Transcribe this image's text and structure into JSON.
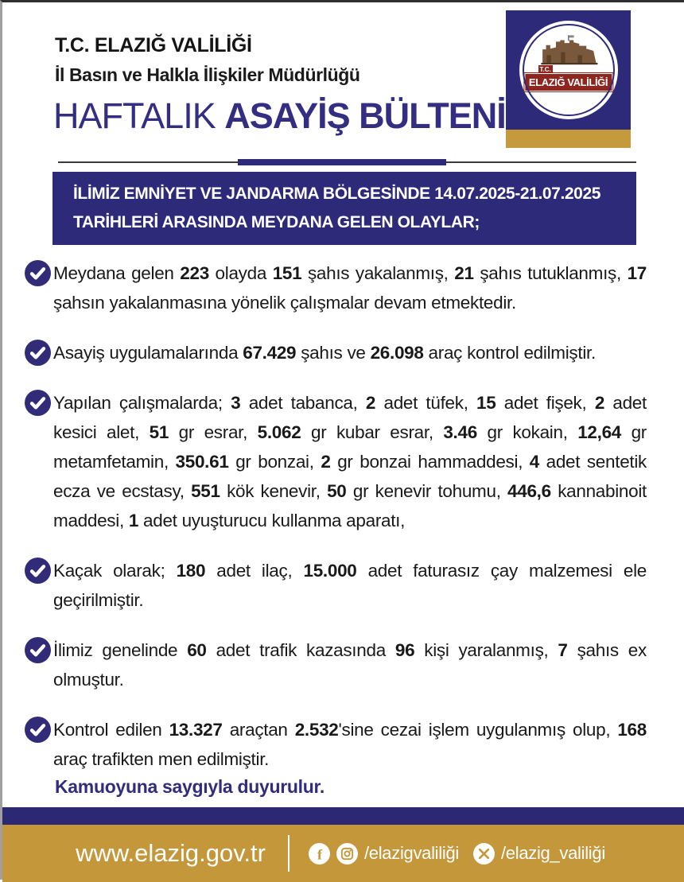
{
  "header": {
    "org_title": "T.C. ELAZIĞ VALİLİĞİ",
    "org_subtitle": "İl Basın ve Halkla İlişkiler Müdürlüğü",
    "title_light": "HAFTALIK",
    "title_bold": "ASAYİŞ BÜLTENİ"
  },
  "logo": {
    "tc": "T.C.",
    "label": "ELAZIĞ VALİLİĞİ"
  },
  "banner": {
    "text": "İLİMİZ EMNİYET VE JANDARMA BÖLGESİNDE 14.07.2025-21.07.2025 TARİHLERİ ARASINDA MEYDANA GELEN OLAYLAR;"
  },
  "bullets": [
    {
      "segments": [
        {
          "text": "Meydana gelen "
        },
        {
          "text": "223",
          "bold": true
        },
        {
          "text": " olayda "
        },
        {
          "text": "151",
          "bold": true
        },
        {
          "text": " şahıs yakalanmış, "
        },
        {
          "text": "21",
          "bold": true
        },
        {
          "text": " şahıs tutuklanmış, "
        },
        {
          "text": "17",
          "bold": true
        },
        {
          "text": " şahsın yakalanmasına yönelik çalışmalar devam etmektedir."
        }
      ]
    },
    {
      "segments": [
        {
          "text": "Asayiş uygulamalarında "
        },
        {
          "text": "67.429",
          "bold": true
        },
        {
          "text": " şahıs ve "
        },
        {
          "text": "26.098",
          "bold": true
        },
        {
          "text": " araç kontrol edilmiştir."
        }
      ]
    },
    {
      "segments": [
        {
          "text": "Yapılan çalışmalarda; "
        },
        {
          "text": "3",
          "bold": true
        },
        {
          "text": " adet tabanca, "
        },
        {
          "text": "2",
          "bold": true
        },
        {
          "text": " adet tüfek, "
        },
        {
          "text": "15",
          "bold": true
        },
        {
          "text": " adet fişek, "
        },
        {
          "text": "2",
          "bold": true
        },
        {
          "text": " adet kesici alet, "
        },
        {
          "text": "51",
          "bold": true
        },
        {
          "text": " gr esrar, "
        },
        {
          "text": "5.062",
          "bold": true
        },
        {
          "text": " gr kubar esrar, "
        },
        {
          "text": "3.46",
          "bold": true
        },
        {
          "text": " gr kokain, "
        },
        {
          "text": "12,64",
          "bold": true
        },
        {
          "text": " gr metamfetamin, "
        },
        {
          "text": "350.61",
          "bold": true
        },
        {
          "text": " gr bonzai, "
        },
        {
          "text": "2",
          "bold": true
        },
        {
          "text": " gr bonzai hammaddesi, "
        },
        {
          "text": "4",
          "bold": true
        },
        {
          "text": " adet sentetik ecza ve ecstasy, "
        },
        {
          "text": "551",
          "bold": true
        },
        {
          "text": " kök kenevir, "
        },
        {
          "text": "50",
          "bold": true
        },
        {
          "text": " gr kenevir tohumu, "
        },
        {
          "text": "446,6",
          "bold": true
        },
        {
          "text": " kannabinoit maddesi, "
        },
        {
          "text": "1",
          "bold": true
        },
        {
          "text": " adet uyuşturucu kullanma aparatı,"
        }
      ]
    },
    {
      "segments": [
        {
          "text": "Kaçak olarak; "
        },
        {
          "text": "180",
          "bold": true
        },
        {
          "text": " adet ilaç, "
        },
        {
          "text": "15.000",
          "bold": true
        },
        {
          "text": " adet faturasız çay malzemesi ele geçirilmiştir."
        }
      ]
    },
    {
      "segments": [
        {
          "text": "İlimiz genelinde "
        },
        {
          "text": "60",
          "bold": true
        },
        {
          "text": " adet trafik kazasında "
        },
        {
          "text": "96",
          "bold": true
        },
        {
          "text": " kişi yaralanmış, "
        },
        {
          "text": "7",
          "bold": true
        },
        {
          "text": " şahıs ex olmuştur."
        }
      ]
    },
    {
      "segments": [
        {
          "text": "Kontrol edilen "
        },
        {
          "text": "13.327",
          "bold": true
        },
        {
          "text": " araçtan "
        },
        {
          "text": "2.532",
          "bold": true
        },
        {
          "text": "'sine cezai işlem uygulanmış olup, "
        },
        {
          "text": "168",
          "bold": true
        },
        {
          "text": " araç trafikten men edilmiştir."
        }
      ]
    }
  ],
  "closing": "Kamuoyuna saygıyla duyurulur.",
  "footer": {
    "website": "www.elazig.gov.tr",
    "social": [
      {
        "icons": [
          "facebook-icon",
          "instagram-icon"
        ],
        "handle": "/elazigvaliliği"
      },
      {
        "icons": [
          "x-icon"
        ],
        "handle": "/elazig_valiliği"
      }
    ]
  },
  "colors": {
    "navy": "#2e2a7a",
    "title_navy": "#332e82",
    "gold": "#c3973a",
    "logo_red": "#8e2620",
    "check_navy": "#322c78"
  }
}
